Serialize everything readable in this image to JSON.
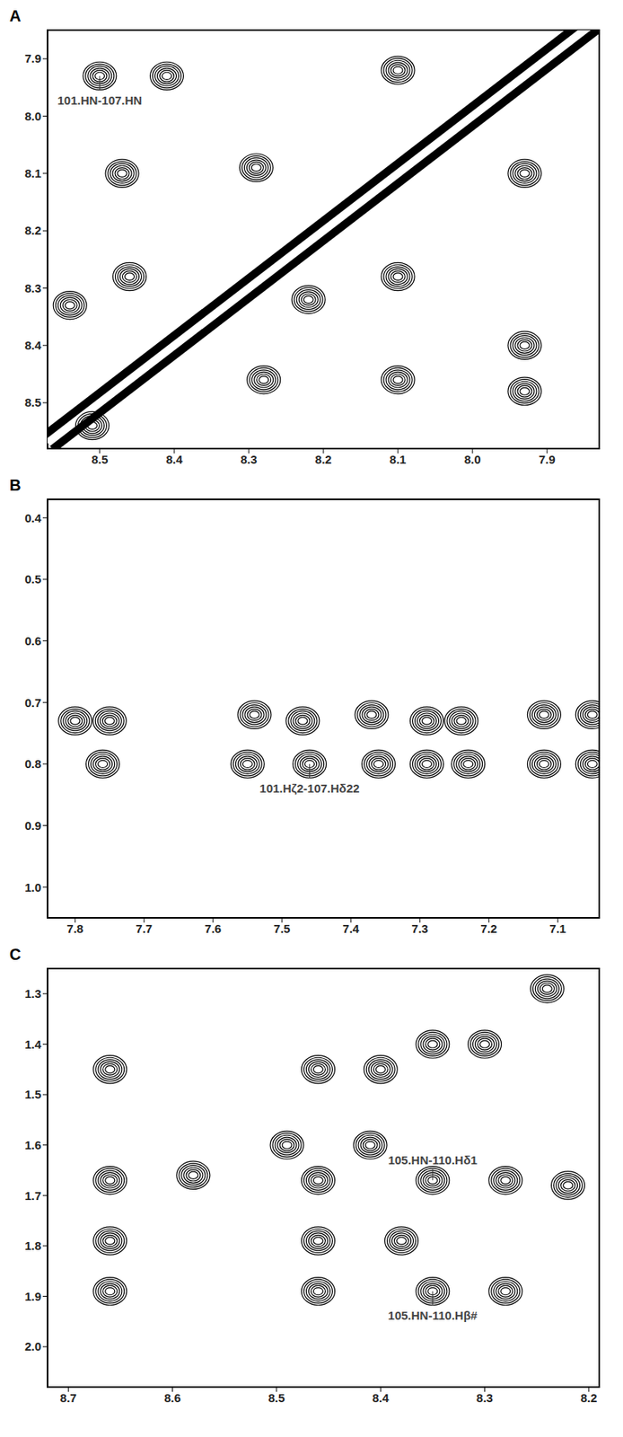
{
  "chart_data": [
    {
      "type": "contour",
      "title": "A",
      "xlim": [
        8.57,
        7.83
      ],
      "ylim": [
        7.85,
        8.58
      ],
      "xticks": [
        8.5,
        8.4,
        8.3,
        8.2,
        8.1,
        {
          "value": 8,
          "label": "8.0"
        },
        7.9
      ],
      "yticks": [
        7.9,
        {
          "value": 8,
          "label": "8.0"
        },
        8.1,
        8.2,
        8.3,
        8.4,
        8.5
      ],
      "diagonal": {
        "x": [
          8.57,
          7.83
        ],
        "y": [
          8.57,
          7.83
        ]
      },
      "peaks": {
        "x": [
          8.5,
          8.41,
          8.1,
          8.29,
          8.47,
          7.93,
          8.46,
          8.1,
          8.54,
          8.28,
          8.1,
          7.93,
          7.93,
          8.51,
          8.22
        ],
        "y": [
          7.93,
          7.93,
          7.92,
          8.09,
          8.1,
          8.1,
          8.28,
          8.28,
          8.33,
          8.46,
          8.46,
          8.4,
          8.48,
          8.54,
          8.32
        ]
      },
      "annotations": [
        {
          "text": "101.HN-107.HN",
          "x": 8.5,
          "y": 7.93
        }
      ]
    },
    {
      "type": "contour",
      "title": "B",
      "xlim": [
        7.84,
        7.04
      ],
      "ylim": [
        0.37,
        1.05
      ],
      "xticks": [
        7.8,
        7.7,
        7.6,
        7.5,
        7.4,
        7.3,
        7.2,
        7.1
      ],
      "yticks": [
        0.4,
        0.5,
        0.6,
        0.7,
        0.8,
        0.9,
        {
          "value": 1,
          "label": "1.0"
        }
      ],
      "peaks": {
        "x": [
          7.8,
          7.75,
          7.76,
          7.54,
          7.47,
          7.37,
          7.55,
          7.46,
          7.36,
          7.29,
          7.24,
          7.29,
          7.23,
          7.12,
          7.12,
          7.05,
          7.05
        ],
        "y": [
          0.73,
          0.73,
          0.8,
          0.72,
          0.73,
          0.72,
          0.8,
          0.8,
          0.8,
          0.73,
          0.73,
          0.8,
          0.8,
          0.72,
          0.8,
          0.72,
          0.8
        ]
      },
      "annotations": [
        {
          "text": "101.Hζ2-107.Hδ22",
          "x": 7.46,
          "y": 0.8
        }
      ]
    },
    {
      "type": "contour",
      "title": "C",
      "xlim": [
        8.72,
        8.19
      ],
      "ylim": [
        1.25,
        2.08
      ],
      "xticks": [
        8.7,
        8.6,
        8.5,
        8.4,
        8.3,
        8.2
      ],
      "yticks": [
        1.3,
        1.4,
        1.5,
        1.6,
        1.7,
        1.8,
        1.9,
        {
          "value": 2,
          "label": "2.0"
        }
      ],
      "peaks": {
        "x": [
          8.66,
          8.66,
          8.66,
          8.66,
          8.58,
          8.46,
          8.46,
          8.46,
          8.46,
          8.4,
          8.35,
          8.3,
          8.24,
          8.35,
          8.28,
          8.38,
          8.35,
          8.28,
          8.41,
          8.22,
          8.49
        ],
        "y": [
          1.45,
          1.67,
          1.79,
          1.89,
          1.66,
          1.45,
          1.79,
          1.89,
          1.67,
          1.45,
          1.4,
          1.4,
          1.29,
          1.67,
          1.67,
          1.79,
          1.89,
          1.89,
          1.6,
          1.68,
          1.6
        ]
      },
      "annotations": [
        {
          "text": "105.HN-110.Hδ1",
          "x": 8.35,
          "y": 1.67
        },
        {
          "text": "105.HN-110.Hβ#",
          "x": 8.35,
          "y": 1.89
        }
      ]
    }
  ]
}
